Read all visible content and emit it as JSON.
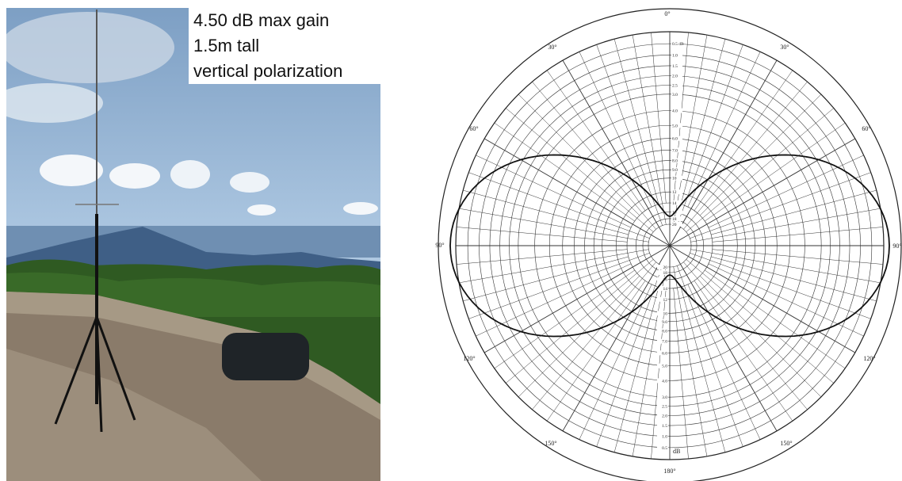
{
  "caption": {
    "lines": [
      "4.50 dB max gain",
      "1.5m tall",
      "vertical polarization"
    ]
  },
  "polar_plot": {
    "angle_labels": [
      "0°",
      "30°",
      "30°",
      "60°",
      "60°",
      "90°",
      "90°",
      "120°",
      "120°",
      "150°",
      "150°",
      "180°"
    ],
    "scale_top": [
      "0.5 dB",
      "1.0",
      "1.5",
      "2.0",
      "2.5",
      "3.0",
      "4.0",
      "5.0",
      "6.0",
      "7.0",
      "8.0",
      "9.0",
      "10",
      "12",
      "14",
      "16",
      "18",
      "20"
    ],
    "scale_bottom": [
      "0.5",
      "1.0",
      "1.5",
      "2.0",
      "2.5",
      "3.0",
      "4.0",
      "5.0",
      "6.0",
      "7.0",
      "8.0",
      "9.0",
      "10",
      "12",
      "14",
      "16",
      "18",
      "20"
    ],
    "unit_label": "dB"
  }
}
